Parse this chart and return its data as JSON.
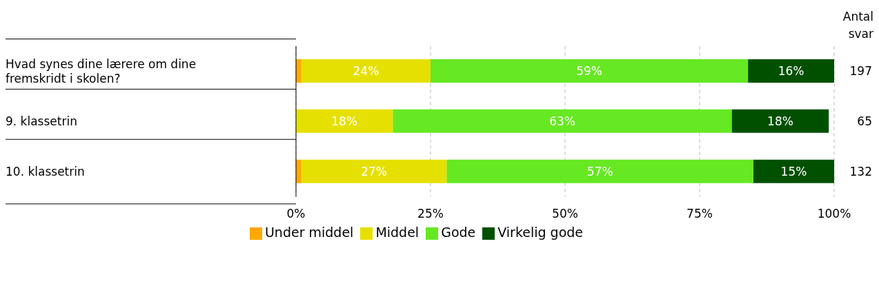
{
  "chart_data": {
    "type": "bar",
    "orientation": "horizontal",
    "stacked": true,
    "categories": [
      "Hvad synes dine lærere om dine fremskridt i skolen?",
      "9. klassetrin",
      "10. klassetrin"
    ],
    "series": [
      {
        "name": "Under middel",
        "color": "#ffa800",
        "values": [
          1,
          null,
          1
        ],
        "value_labels": [
          null,
          null,
          null
        ]
      },
      {
        "name": "Middel",
        "color": "#e6e000",
        "values": [
          24,
          18,
          27
        ],
        "value_labels": [
          "24%",
          "18%",
          "27%"
        ]
      },
      {
        "name": "Gode",
        "color": "#66e822",
        "values": [
          59,
          63,
          57
        ],
        "value_labels": [
          "59%",
          "63%",
          "57%"
        ]
      },
      {
        "name": "Virkelig gode",
        "color": "#005000",
        "values": [
          16,
          18,
          15
        ],
        "value_labels": [
          "16%",
          "18%",
          "15%"
        ]
      }
    ],
    "xlim": [
      0,
      100
    ],
    "xticks": [
      {
        "value": 0,
        "label": "0%"
      },
      {
        "value": 25,
        "label": "25%"
      },
      {
        "value": 50,
        "label": "50%"
      },
      {
        "value": 75,
        "label": "75%"
      },
      {
        "value": 100,
        "label": "100%"
      }
    ],
    "grid": "x",
    "legend": "bottom",
    "annotations": [
      "Antal svar",
      "197",
      "65",
      "132"
    ]
  }
}
